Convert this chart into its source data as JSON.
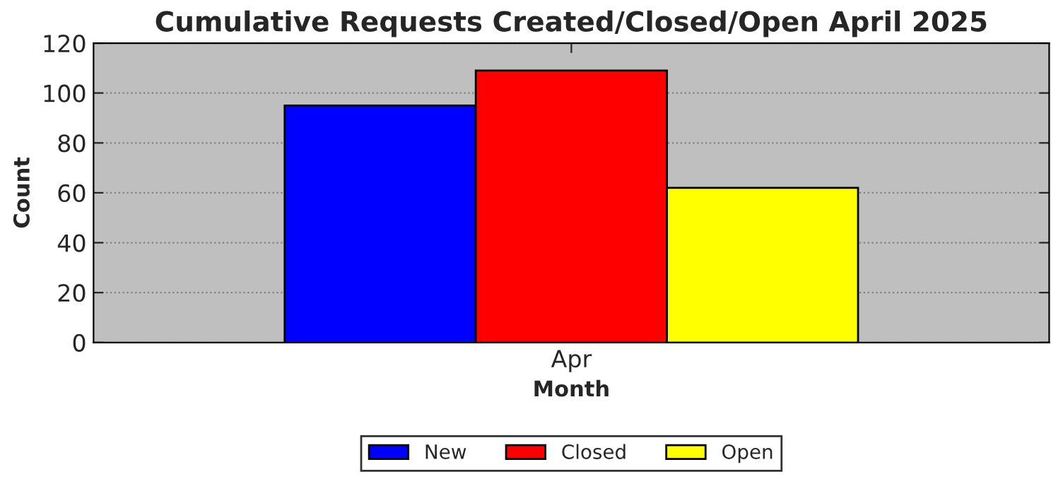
{
  "chart_data": {
    "type": "bar",
    "title": "Cumulative Requests Created/Closed/Open April 2025",
    "xlabel": "Month",
    "ylabel": "Count",
    "categories": [
      "Apr"
    ],
    "series": [
      {
        "name": "New",
        "color": "#0000ff",
        "values": [
          95
        ]
      },
      {
        "name": "Closed",
        "color": "#ff0000",
        "values": [
          109
        ]
      },
      {
        "name": "Open",
        "color": "#ffff00",
        "values": [
          62
        ]
      }
    ],
    "ylim": [
      0,
      120
    ],
    "yticks": [
      0,
      20,
      40,
      60,
      80,
      100,
      120
    ],
    "grid": "y",
    "legend": "bottom"
  }
}
